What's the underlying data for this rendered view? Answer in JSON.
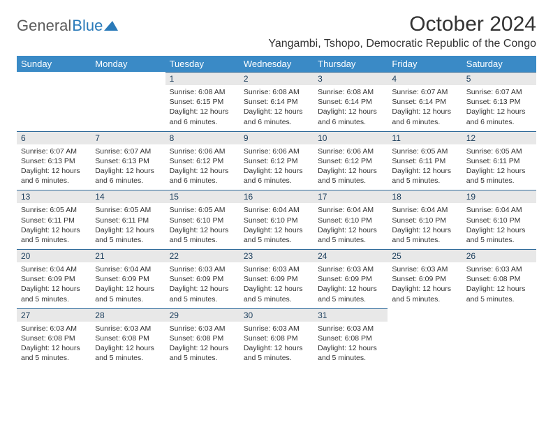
{
  "logo": {
    "text_gray": "General",
    "text_blue": "Blue"
  },
  "title": "October 2024",
  "location": "Yangambi, Tshopo, Democratic Republic of the Congo",
  "colors": {
    "header_bg": "#3a8ac6",
    "header_text": "#ffffff",
    "daynum_bg": "#e8e8e8",
    "daynum_border": "#2f6a9a",
    "daynum_text": "#1a3d5c",
    "body_text": "#333333",
    "logo_gray": "#5a5a5a",
    "logo_blue": "#2a7ab9"
  },
  "weekdays": [
    "Sunday",
    "Monday",
    "Tuesday",
    "Wednesday",
    "Thursday",
    "Friday",
    "Saturday"
  ],
  "weeks": [
    [
      null,
      null,
      {
        "d": "1",
        "sr": "6:08 AM",
        "ss": "6:15 PM",
        "dl": "12 hours and 6 minutes."
      },
      {
        "d": "2",
        "sr": "6:08 AM",
        "ss": "6:14 PM",
        "dl": "12 hours and 6 minutes."
      },
      {
        "d": "3",
        "sr": "6:08 AM",
        "ss": "6:14 PM",
        "dl": "12 hours and 6 minutes."
      },
      {
        "d": "4",
        "sr": "6:07 AM",
        "ss": "6:14 PM",
        "dl": "12 hours and 6 minutes."
      },
      {
        "d": "5",
        "sr": "6:07 AM",
        "ss": "6:13 PM",
        "dl": "12 hours and 6 minutes."
      }
    ],
    [
      {
        "d": "6",
        "sr": "6:07 AM",
        "ss": "6:13 PM",
        "dl": "12 hours and 6 minutes."
      },
      {
        "d": "7",
        "sr": "6:07 AM",
        "ss": "6:13 PM",
        "dl": "12 hours and 6 minutes."
      },
      {
        "d": "8",
        "sr": "6:06 AM",
        "ss": "6:12 PM",
        "dl": "12 hours and 6 minutes."
      },
      {
        "d": "9",
        "sr": "6:06 AM",
        "ss": "6:12 PM",
        "dl": "12 hours and 6 minutes."
      },
      {
        "d": "10",
        "sr": "6:06 AM",
        "ss": "6:12 PM",
        "dl": "12 hours and 5 minutes."
      },
      {
        "d": "11",
        "sr": "6:05 AM",
        "ss": "6:11 PM",
        "dl": "12 hours and 5 minutes."
      },
      {
        "d": "12",
        "sr": "6:05 AM",
        "ss": "6:11 PM",
        "dl": "12 hours and 5 minutes."
      }
    ],
    [
      {
        "d": "13",
        "sr": "6:05 AM",
        "ss": "6:11 PM",
        "dl": "12 hours and 5 minutes."
      },
      {
        "d": "14",
        "sr": "6:05 AM",
        "ss": "6:11 PM",
        "dl": "12 hours and 5 minutes."
      },
      {
        "d": "15",
        "sr": "6:05 AM",
        "ss": "6:10 PM",
        "dl": "12 hours and 5 minutes."
      },
      {
        "d": "16",
        "sr": "6:04 AM",
        "ss": "6:10 PM",
        "dl": "12 hours and 5 minutes."
      },
      {
        "d": "17",
        "sr": "6:04 AM",
        "ss": "6:10 PM",
        "dl": "12 hours and 5 minutes."
      },
      {
        "d": "18",
        "sr": "6:04 AM",
        "ss": "6:10 PM",
        "dl": "12 hours and 5 minutes."
      },
      {
        "d": "19",
        "sr": "6:04 AM",
        "ss": "6:10 PM",
        "dl": "12 hours and 5 minutes."
      }
    ],
    [
      {
        "d": "20",
        "sr": "6:04 AM",
        "ss": "6:09 PM",
        "dl": "12 hours and 5 minutes."
      },
      {
        "d": "21",
        "sr": "6:04 AM",
        "ss": "6:09 PM",
        "dl": "12 hours and 5 minutes."
      },
      {
        "d": "22",
        "sr": "6:03 AM",
        "ss": "6:09 PM",
        "dl": "12 hours and 5 minutes."
      },
      {
        "d": "23",
        "sr": "6:03 AM",
        "ss": "6:09 PM",
        "dl": "12 hours and 5 minutes."
      },
      {
        "d": "24",
        "sr": "6:03 AM",
        "ss": "6:09 PM",
        "dl": "12 hours and 5 minutes."
      },
      {
        "d": "25",
        "sr": "6:03 AM",
        "ss": "6:09 PM",
        "dl": "12 hours and 5 minutes."
      },
      {
        "d": "26",
        "sr": "6:03 AM",
        "ss": "6:08 PM",
        "dl": "12 hours and 5 minutes."
      }
    ],
    [
      {
        "d": "27",
        "sr": "6:03 AM",
        "ss": "6:08 PM",
        "dl": "12 hours and 5 minutes."
      },
      {
        "d": "28",
        "sr": "6:03 AM",
        "ss": "6:08 PM",
        "dl": "12 hours and 5 minutes."
      },
      {
        "d": "29",
        "sr": "6:03 AM",
        "ss": "6:08 PM",
        "dl": "12 hours and 5 minutes."
      },
      {
        "d": "30",
        "sr": "6:03 AM",
        "ss": "6:08 PM",
        "dl": "12 hours and 5 minutes."
      },
      {
        "d": "31",
        "sr": "6:03 AM",
        "ss": "6:08 PM",
        "dl": "12 hours and 5 minutes."
      },
      null,
      null
    ]
  ],
  "labels": {
    "sunrise": "Sunrise: ",
    "sunset": "Sunset: ",
    "daylight": "Daylight: "
  }
}
